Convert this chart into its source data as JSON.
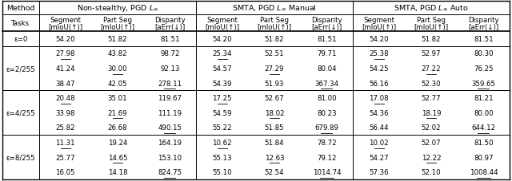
{
  "group_labels": [
    "Non-stealthy, PGD $L_\\infty$",
    "SMTA, PGD $L_\\infty$ Manual",
    "SMTA, PGD $L_\\infty$ Auto"
  ],
  "sub_headers_line1": [
    "Segment",
    "Part Seg",
    "Disparity",
    "Segment",
    "Part Seg",
    "Disparity",
    "Segment",
    "Part Seg",
    "Disparity"
  ],
  "sub_headers_line2": [
    "[mIoU(↑)]",
    "[mIoU(↑)]",
    "[aErr(↓)]",
    "[mIoU(↑)]",
    "[mIoU(↑)]",
    "[aErr(↓)]",
    "[mIoU(↑)]",
    "[mIoU(↑)]",
    "[aErr(↓)]"
  ],
  "row_labels": [
    "ε=0",
    "ε=2/255",
    "ε=4/255",
    "ε=8/255"
  ],
  "row_sub_counts": [
    1,
    3,
    3,
    3
  ],
  "cell_data": [
    [
      [
        "54.20",
        "51.82",
        "81.51",
        "54.20",
        "51.82",
        "81.51",
        "54.20",
        "51.82",
        "81.51"
      ]
    ],
    [
      [
        "27.98",
        "43.82",
        "98.72",
        "25.34",
        "52.51",
        "79.71",
        "25.38",
        "52.97",
        "80.30"
      ],
      [
        "41.24",
        "30.00",
        "92.13",
        "54.57",
        "27.29",
        "80.04",
        "54.25",
        "27.22",
        "76.25"
      ],
      [
        "38.47",
        "42.05",
        "278.11",
        "54.39",
        "51.93",
        "367.34",
        "56.16",
        "52.30",
        "359.65"
      ]
    ],
    [
      [
        "20.48",
        "35.01",
        "119.67",
        "17.25",
        "52.67",
        "81.00",
        "17.08",
        "52.77",
        "81.21"
      ],
      [
        "33.98",
        "21.69",
        "111.19",
        "54.59",
        "18.02",
        "80.23",
        "54.36",
        "18.19",
        "80.00"
      ],
      [
        "25.82",
        "26.68",
        "490.15",
        "55.22",
        "51.85",
        "679.89",
        "56.44",
        "52.02",
        "644.12"
      ]
    ],
    [
      [
        "11.31",
        "19.24",
        "164.19",
        "10.62",
        "51.84",
        "78.72",
        "10.02",
        "52.07",
        "81.50"
      ],
      [
        "25.77",
        "14.65",
        "153.10",
        "55.13",
        "12.63",
        "79.12",
        "54.27",
        "12.22",
        "80.97"
      ],
      [
        "16.05",
        "14.18",
        "824.75",
        "55.10",
        "52.54",
        "1014.74",
        "57.36",
        "52.10",
        "1008.44"
      ]
    ]
  ],
  "underline_data": [
    [
      [
        false,
        false,
        false,
        false,
        false,
        false,
        false,
        false,
        false
      ]
    ],
    [
      [
        true,
        false,
        false,
        true,
        false,
        false,
        true,
        false,
        false
      ],
      [
        false,
        true,
        false,
        false,
        true,
        false,
        false,
        true,
        false
      ],
      [
        false,
        false,
        true,
        false,
        false,
        true,
        false,
        false,
        true
      ]
    ],
    [
      [
        true,
        false,
        false,
        true,
        false,
        false,
        true,
        false,
        false
      ],
      [
        false,
        true,
        false,
        false,
        true,
        false,
        false,
        true,
        false
      ],
      [
        false,
        false,
        true,
        false,
        false,
        true,
        false,
        false,
        true
      ]
    ],
    [
      [
        true,
        false,
        false,
        true,
        false,
        false,
        true,
        false,
        false
      ],
      [
        false,
        true,
        false,
        false,
        true,
        false,
        false,
        true,
        false
      ],
      [
        false,
        false,
        true,
        false,
        false,
        true,
        false,
        false,
        true
      ]
    ]
  ],
  "bg_color": "#ffffff",
  "text_color": "#000000",
  "font_size": 6.2,
  "header_font_size": 6.8
}
